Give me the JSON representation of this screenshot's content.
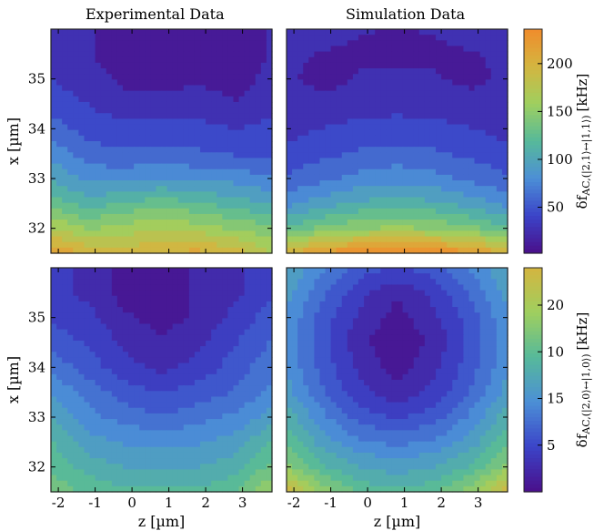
{
  "panels": {
    "col_titles": [
      "Experimental Data",
      "Simulation Data"
    ]
  },
  "colorbars": [
    {
      "label": "δf_AC,(|2,1⟩↔|1,1⟩) [kHz]",
      "label_main": "δf",
      "label_sub": "AC,(|2,1⟩↔|1,1⟩)",
      "label_unit": "[kHz]",
      "ticks": [
        "50",
        "100",
        "150",
        "200"
      ],
      "tick_values": [
        50,
        100,
        150,
        200
      ],
      "range": [
        2,
        236
      ],
      "colormap": [
        "#4a0f8a",
        "#3b44c8",
        "#4c8fd6",
        "#56b99a",
        "#9fcf5f",
        "#d4b540",
        "#f08c2c"
      ]
    },
    {
      "label": "δf_AC,(|2,0⟩↔|1,0⟩) [kHz]",
      "label_main": "δf",
      "label_sub": "AC,(|2,0⟩↔|1,0⟩)",
      "label_unit": "[kHz]",
      "ticks": [
        "5",
        "15",
        "10",
        "20"
      ],
      "tick_values": [
        5,
        10,
        15,
        20
      ],
      "range": [
        0,
        24
      ],
      "colormap": [
        "#4a0f8a",
        "#3b44c8",
        "#4c8fd6",
        "#56b99a",
        "#9fcf5f",
        "#d4b540"
      ]
    }
  ],
  "axes": {
    "xlabel": "z [µm]",
    "ylabel": "x [µm]",
    "xticks": [
      "-2",
      "-1",
      "0",
      "1",
      "2",
      "3"
    ],
    "xtick_values": [
      -2,
      -1,
      0,
      1,
      2,
      3
    ],
    "yticks": [
      "32",
      "33",
      "34",
      "35"
    ],
    "ytick_values": [
      32,
      33,
      34,
      35
    ],
    "xlim": [
      -2.2,
      3.8
    ],
    "ylim": [
      31.5,
      36
    ]
  },
  "chart_data": [
    {
      "type": "heatmap",
      "title": "Experimental Data",
      "xlabel": "",
      "ylabel": "x [µm]",
      "x": [
        -2.2,
        -1.2,
        -0.2,
        0.8,
        1.8,
        2.8,
        3.8
      ],
      "y": [
        31.5,
        32,
        32.5,
        33,
        33.5,
        34,
        34.5,
        35,
        35.5,
        36
      ],
      "z": [
        [
          220,
          200,
          195,
          200,
          210,
          195,
          170
        ],
        [
          170,
          150,
          160,
          170,
          160,
          150,
          140
        ],
        [
          130,
          110,
          120,
          130,
          120,
          110,
          100
        ],
        [
          100,
          80,
          80,
          85,
          80,
          80,
          70
        ],
        [
          80,
          60,
          55,
          60,
          55,
          50,
          45
        ],
        [
          60,
          45,
          40,
          40,
          40,
          35,
          40
        ],
        [
          45,
          35,
          25,
          25,
          30,
          20,
          30
        ],
        [
          35,
          25,
          15,
          10,
          15,
          10,
          25
        ],
        [
          30,
          20,
          10,
          5,
          10,
          5,
          20
        ],
        [
          30,
          20,
          10,
          5,
          10,
          10,
          20
        ]
      ]
    },
    {
      "type": "heatmap",
      "title": "Simulation Data",
      "xlabel": "",
      "ylabel": "",
      "x": [
        -2.2,
        -1.2,
        -0.2,
        0.8,
        1.8,
        2.8,
        3.8
      ],
      "y": [
        31.5,
        32,
        32.5,
        33,
        33.5,
        34,
        34.5,
        35,
        35.5,
        36
      ],
      "z": [
        [
          200,
          225,
          235,
          236,
          235,
          225,
          200
        ],
        [
          120,
          140,
          150,
          155,
          150,
          140,
          120
        ],
        [
          80,
          95,
          105,
          110,
          105,
          95,
          80
        ],
        [
          55,
          65,
          75,
          80,
          75,
          65,
          55
        ],
        [
          40,
          48,
          55,
          58,
          55,
          48,
          40
        ],
        [
          30,
          36,
          40,
          42,
          40,
          36,
          30
        ],
        [
          24,
          26,
          28,
          30,
          28,
          26,
          24
        ],
        [
          22,
          12,
          20,
          22,
          20,
          14,
          22
        ],
        [
          22,
          18,
          16,
          16,
          16,
          18,
          22
        ],
        [
          30,
          24,
          20,
          18,
          20,
          24,
          30
        ]
      ]
    },
    {
      "type": "heatmap",
      "title": "",
      "xlabel": "z [µm]",
      "ylabel": "x [µm]",
      "x": [
        -2.2,
        -1.2,
        -0.2,
        0.8,
        1.8,
        2.8,
        3.8
      ],
      "y": [
        31.5,
        32,
        32.5,
        33,
        33.5,
        34,
        34.5,
        35,
        35.5,
        36
      ],
      "z": [
        [
          17,
          15,
          14,
          14,
          14,
          15,
          19
        ],
        [
          15,
          13,
          12,
          12,
          12,
          13,
          16
        ],
        [
          14,
          11,
          10,
          10,
          10,
          11,
          14
        ],
        [
          12,
          9,
          8,
          7,
          8,
          9,
          11
        ],
        [
          10,
          8,
          6,
          5,
          6,
          7,
          9
        ],
        [
          8,
          6,
          4,
          3,
          4,
          6,
          8
        ],
        [
          6,
          5,
          3,
          2,
          3,
          5,
          7
        ],
        [
          5,
          4,
          2,
          1,
          2,
          4,
          6
        ],
        [
          4,
          3,
          1,
          1,
          2,
          3,
          5
        ],
        [
          4,
          3,
          1,
          1,
          2,
          3,
          5
        ]
      ]
    },
    {
      "type": "heatmap",
      "title": "",
      "xlabel": "z [µm]",
      "ylabel": "",
      "x": [
        -2.2,
        -1.2,
        -0.2,
        0.8,
        1.8,
        2.8,
        3.8
      ],
      "y": [
        31.5,
        32,
        32.5,
        33,
        33.5,
        34,
        34.5,
        35,
        35.5,
        36
      ],
      "z": [
        [
          24,
          18,
          15,
          14,
          15,
          18,
          24
        ],
        [
          18,
          14,
          12,
          11,
          12,
          14,
          18
        ],
        [
          15,
          11,
          9,
          8,
          9,
          11,
          15
        ],
        [
          13,
          9,
          6,
          5,
          6,
          9,
          13
        ],
        [
          11,
          7,
          4,
          2,
          4,
          7,
          11
        ],
        [
          10,
          6,
          3,
          1,
          3,
          6,
          10
        ],
        [
          10,
          6,
          2,
          0.5,
          2,
          6,
          10
        ],
        [
          10,
          6,
          3,
          1,
          3,
          6,
          10
        ],
        [
          11,
          7,
          4,
          2,
          4,
          7,
          11
        ],
        [
          12,
          9,
          6,
          5,
          6,
          9,
          12
        ]
      ]
    }
  ]
}
